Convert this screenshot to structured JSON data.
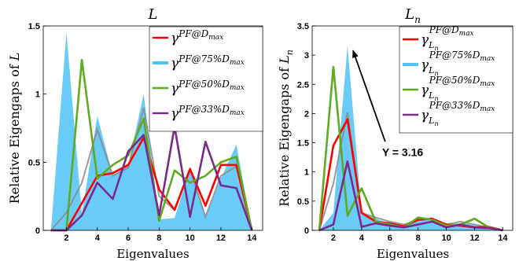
{
  "chart_data": [
    {
      "type": "area",
      "title": "L",
      "xlabel": "Eigenvalues",
      "ylabel": "Relative Eigengaps of L",
      "xlim": [
        0.5,
        14.7
      ],
      "ylim": [
        0,
        1.5
      ],
      "xticks": [
        2,
        4,
        6,
        8,
        10,
        12,
        14
      ],
      "yticks": [
        0,
        0.5,
        1,
        1.5
      ],
      "grid": false,
      "legend_position": "top-right",
      "x": [
        1,
        2,
        3,
        4,
        5,
        6,
        7,
        8,
        9,
        10,
        11,
        12,
        13,
        14
      ],
      "series": [
        {
          "name": "γ PF@D max",
          "legend_main": "γ",
          "legend_sup": "PF@D",
          "legend_subsup": "max",
          "role": "line",
          "color": "#ff0000",
          "values": [
            0,
            0,
            0.2,
            0.4,
            0.42,
            0.48,
            0.68,
            0.3,
            0.15,
            0.45,
            0.18,
            0.48,
            0.48,
            0
          ]
        },
        {
          "name": "γ PF@75%D max",
          "legend_main": "γ",
          "legend_sup": "PF@75%D",
          "legend_subsup": "max",
          "role": "area",
          "color": "#4fc3f7",
          "values": [
            0,
            1.45,
            0.12,
            0.84,
            0.4,
            0.48,
            1.0,
            0.08,
            0.09,
            0.45,
            0.1,
            0.38,
            0.63,
            0
          ]
        },
        {
          "name": "γ PF@50%D max",
          "legend_main": "γ",
          "legend_sup": "PF@50%D",
          "legend_subsup": "max",
          "role": "line",
          "color": "#5faa1e",
          "values": [
            0,
            0,
            1.25,
            0.38,
            0.48,
            0.55,
            0.82,
            0.07,
            0.44,
            0.35,
            0.4,
            0.5,
            0.54,
            0
          ]
        },
        {
          "name": "γ PF@33%D max",
          "legend_main": "γ",
          "legend_sup": "PF@33%D",
          "legend_subsup": "max",
          "role": "line",
          "color": "#7b2a8b",
          "values": [
            0,
            0,
            0.11,
            0.35,
            0.23,
            0.58,
            0.7,
            0.11,
            0.76,
            0.1,
            0.65,
            0.33,
            0.31,
            0
          ]
        }
      ],
      "outline": {
        "color": "#8a8a8a",
        "values": [
          0,
          0.13,
          0.35,
          0.74,
          0.4,
          0.46,
          0.9,
          0.25,
          0.15,
          0.45,
          0.1,
          0.4,
          0.47,
          0
        ]
      }
    },
    {
      "type": "area",
      "title": "L",
      "title_sub": "n",
      "xlabel": "Eigenvalues",
      "ylabel": "Relative Eigengaps of L",
      "ylabel_sub": "n",
      "xlim": [
        0.5,
        14.7
      ],
      "ylim": [
        0,
        3.5
      ],
      "xticks": [
        2,
        4,
        6,
        8,
        10,
        12,
        14
      ],
      "yticks": [
        0,
        0.5,
        1,
        1.5,
        2,
        2.5,
        3,
        3.5
      ],
      "grid": false,
      "legend_position": "top-right",
      "x": [
        1,
        2,
        3,
        4,
        5,
        6,
        7,
        8,
        9,
        10,
        11,
        12,
        13,
        14
      ],
      "series": [
        {
          "name": "γ L n PF@D max",
          "legend_main": "γ",
          "legend_sup": "PF@D",
          "legend_subsup": "max",
          "legend_sub": "L",
          "legend_subsub": "n",
          "role": "line",
          "color": "#ff0000",
          "values": [
            0,
            1.45,
            1.9,
            0.3,
            0.15,
            0.12,
            0.07,
            0.18,
            0.2,
            0.1,
            0.08,
            0.05,
            0.06,
            0
          ]
        },
        {
          "name": "γ L n PF@75%D max",
          "legend_main": "γ",
          "legend_sup": "PF@75%D",
          "legend_subsup": "max",
          "legend_sub": "L",
          "legend_subsub": "n",
          "role": "area",
          "color": "#4fc3f7",
          "values": [
            0,
            0.3,
            3.16,
            0.3,
            0.2,
            0.12,
            0.07,
            0.2,
            0.18,
            0.1,
            0.12,
            0.1,
            0.05,
            0
          ]
        },
        {
          "name": "γ L n PF@50%D max",
          "legend_main": "γ",
          "legend_sup": "PF@50%D",
          "legend_subsup": "max",
          "legend_sub": "L",
          "legend_subsub": "n",
          "role": "line",
          "color": "#5faa1e",
          "values": [
            0,
            2.8,
            0.25,
            0.72,
            0.15,
            0.1,
            0.05,
            0.22,
            0.18,
            0.08,
            0.1,
            0.2,
            0.05,
            0
          ]
        },
        {
          "name": "γ L n PF@33%D max",
          "legend_main": "γ",
          "legend_sup": "PF@33%D",
          "legend_subsup": "max",
          "legend_sub": "L",
          "legend_subsub": "n",
          "role": "line",
          "color": "#7b2a8b",
          "values": [
            0,
            0.1,
            1.18,
            0.06,
            0.12,
            0.08,
            0.05,
            0.1,
            0.15,
            0.05,
            0.1,
            0.05,
            0.04,
            0
          ]
        }
      ],
      "outline": {
        "color": "#8a8a8a",
        "values": [
          0,
          0.8,
          2.02,
          0.3,
          0.22,
          0.15,
          0.1,
          0.18,
          0.2,
          0.1,
          0.15,
          0.1,
          0.05,
          0
        ]
      },
      "annotation": {
        "text": "Y = 3.16",
        "x": 3,
        "y": 3.16
      }
    }
  ]
}
